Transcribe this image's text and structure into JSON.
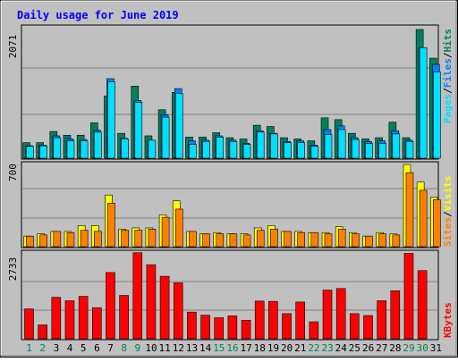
{
  "title": "Daily usage for June 2019",
  "colors": {
    "frame": "#c0c0c0",
    "plot_bg": "#c0c0c0",
    "grid": "#808080",
    "title": "#0000ff",
    "hits": "#00805c",
    "files": "#00c0ff",
    "pages": "#00e0ff",
    "visits": "#ffff00",
    "sites": "#ff8000",
    "kbytes": "#ff0000",
    "weekend_day": "#00805c",
    "weekday": "#000000"
  },
  "legends": {
    "top": {
      "pages": "Pages",
      "files": "Files",
      "hits": "Hits",
      "sep": "/"
    },
    "middle": {
      "sites": "Sites",
      "visits": "Visits",
      "sep": "/"
    },
    "bottom": {
      "kbytes": "KBytes"
    }
  },
  "chart_data": [
    {
      "type": "bar",
      "panel": "hits-files-pages",
      "categories": [
        "1",
        "2",
        "3",
        "4",
        "5",
        "6",
        "7",
        "8",
        "9",
        "10",
        "11",
        "12",
        "13",
        "14",
        "15",
        "16",
        "17",
        "18",
        "19",
        "20",
        "21",
        "22",
        "23",
        "24",
        "25",
        "26",
        "27",
        "28",
        "29",
        "30",
        "31"
      ],
      "ymax_label": "2071",
      "ylim": [
        0,
        2071
      ],
      "grid": true,
      "series": [
        {
          "name": "Hits",
          "values": [
            250,
            250,
            430,
            370,
            370,
            570,
            1000,
            400,
            1160,
            360,
            780,
            1060,
            340,
            340,
            410,
            330,
            310,
            530,
            510,
            330,
            310,
            280,
            650,
            620,
            400,
            310,
            330,
            580,
            330,
            2071,
            1610
          ]
        },
        {
          "name": "Files",
          "values": [
            200,
            210,
            360,
            310,
            300,
            450,
            1280,
            320,
            930,
            290,
            700,
            1120,
            280,
            290,
            360,
            290,
            240,
            440,
            400,
            270,
            280,
            210,
            460,
            520,
            330,
            270,
            280,
            440,
            290,
            1770,
            1510
          ]
        },
        {
          "name": "Pages",
          "values": [
            190,
            200,
            330,
            280,
            280,
            420,
            1230,
            310,
            900,
            290,
            660,
            1040,
            220,
            270,
            340,
            270,
            220,
            420,
            390,
            250,
            250,
            190,
            380,
            460,
            300,
            240,
            240,
            390,
            270,
            1780,
            1390
          ]
        }
      ]
    },
    {
      "type": "bar",
      "panel": "visits-sites",
      "categories": [
        "1",
        "2",
        "3",
        "4",
        "5",
        "6",
        "7",
        "8",
        "9",
        "10",
        "11",
        "12",
        "13",
        "14",
        "15",
        "16",
        "17",
        "18",
        "19",
        "20",
        "21",
        "22",
        "23",
        "24",
        "25",
        "26",
        "27",
        "28",
        "29",
        "30",
        "31"
      ],
      "ymax_label": "700",
      "ylim": [
        0,
        700
      ],
      "grid": true,
      "series": [
        {
          "name": "Visits",
          "values": [
            90,
            110,
            130,
            130,
            180,
            180,
            440,
            150,
            160,
            160,
            270,
            390,
            130,
            110,
            120,
            110,
            110,
            160,
            180,
            130,
            130,
            120,
            120,
            170,
            120,
            90,
            120,
            110,
            700,
            550,
            420
          ]
        },
        {
          "name": "Sites",
          "values": [
            90,
            100,
            130,
            120,
            140,
            130,
            370,
            140,
            140,
            150,
            250,
            320,
            130,
            110,
            110,
            110,
            100,
            140,
            150,
            130,
            120,
            120,
            110,
            150,
            110,
            90,
            110,
            100,
            630,
            480,
            400
          ]
        }
      ]
    },
    {
      "type": "bar",
      "panel": "kbytes",
      "categories": [
        "1",
        "2",
        "3",
        "4",
        "5",
        "6",
        "7",
        "8",
        "9",
        "10",
        "11",
        "12",
        "13",
        "14",
        "15",
        "16",
        "17",
        "18",
        "19",
        "20",
        "21",
        "22",
        "23",
        "24",
        "25",
        "26",
        "27",
        "28",
        "29",
        "30",
        "31"
      ],
      "ymax_label": "2733",
      "ylim": [
        0,
        2733
      ],
      "grid": true,
      "series": [
        {
          "name": "KBytes",
          "values": [
            950,
            440,
            1320,
            1210,
            1350,
            990,
            2110,
            1380,
            2740,
            2360,
            1990,
            1780,
            850,
            750,
            670,
            730,
            590,
            1200,
            1190,
            800,
            1170,
            540,
            1550,
            1600,
            800,
            740,
            1210,
            1530,
            2720,
            2170,
            0
          ]
        }
      ]
    }
  ],
  "weekend_days": [
    1,
    2,
    8,
    9,
    15,
    16,
    22,
    23,
    29,
    30
  ]
}
